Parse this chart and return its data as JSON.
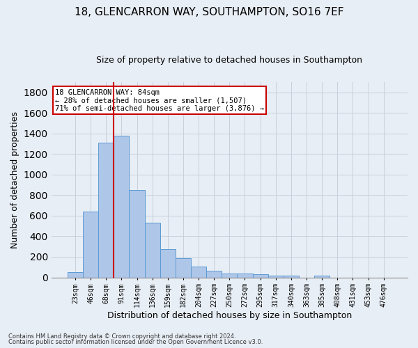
{
  "title1": "18, GLENCARRON WAY, SOUTHAMPTON, SO16 7EF",
  "title2": "Size of property relative to detached houses in Southampton",
  "xlabel": "Distribution of detached houses by size in Southampton",
  "ylabel": "Number of detached properties",
  "categories": [
    "23sqm",
    "46sqm",
    "68sqm",
    "91sqm",
    "114sqm",
    "136sqm",
    "159sqm",
    "182sqm",
    "204sqm",
    "227sqm",
    "250sqm",
    "272sqm",
    "295sqm",
    "317sqm",
    "340sqm",
    "363sqm",
    "385sqm",
    "408sqm",
    "431sqm",
    "453sqm",
    "476sqm"
  ],
  "values": [
    50,
    640,
    1310,
    1380,
    848,
    530,
    275,
    185,
    105,
    65,
    38,
    38,
    28,
    15,
    15,
    0,
    15,
    0,
    0,
    0,
    0
  ],
  "bar_color": "#aec6e8",
  "bar_edge_color": "#5b9bd5",
  "vline_color": "#cc0000",
  "vline_x_index": 2.5,
  "annotation_text": "18 GLENCARRON WAY: 84sqm\n← 28% of detached houses are smaller (1,507)\n71% of semi-detached houses are larger (3,876) →",
  "annotation_box_color": "#ffffff",
  "annotation_box_edge_color": "#cc0000",
  "ylim": [
    0,
    1900
  ],
  "yticks": [
    0,
    200,
    400,
    600,
    800,
    1000,
    1200,
    1400,
    1600,
    1800
  ],
  "grid_color": "#c8d0dc",
  "bg_color": "#e8eef5",
  "footnote1": "Contains HM Land Registry data © Crown copyright and database right 2024.",
  "footnote2": "Contains public sector information licensed under the Open Government Licence v3.0.",
  "title1_fontsize": 11,
  "title2_fontsize": 9,
  "xlabel_fontsize": 9,
  "ylabel_fontsize": 9,
  "annotation_fontsize": 7.5,
  "footnote_fontsize": 6
}
